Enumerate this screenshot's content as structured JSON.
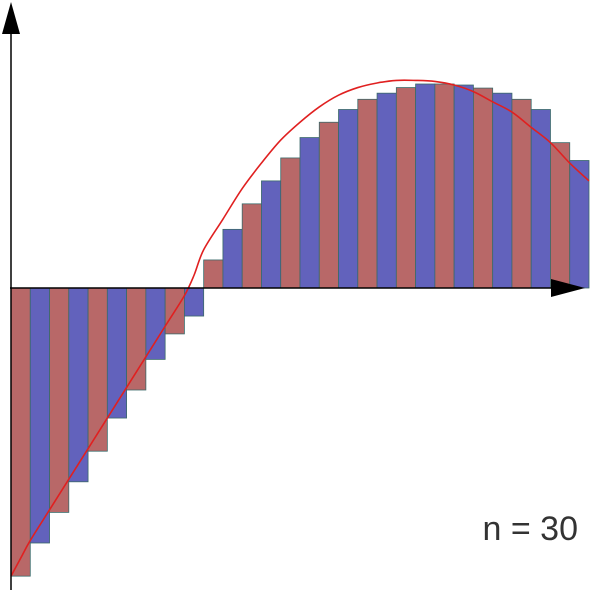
{
  "chart_data": {
    "type": "bar",
    "subtype": "riemann-sum",
    "annotation": "n = 30",
    "n": 30,
    "values": [
      -5.65,
      -5.0,
      -4.4,
      -3.8,
      -3.2,
      -2.55,
      -2.0,
      -1.4,
      -0.9,
      -0.55,
      0.55,
      1.15,
      1.65,
      2.1,
      2.55,
      2.95,
      3.25,
      3.5,
      3.7,
      3.82,
      3.93,
      4.0,
      4.0,
      3.98,
      3.92,
      3.82,
      3.7,
      3.5,
      2.85,
      2.5
    ],
    "curve": [
      [
        0,
        -5.65
      ],
      [
        0.5,
        -5.3
      ],
      [
        1,
        -4.95
      ],
      [
        2,
        -4.35
      ],
      [
        3,
        -3.75
      ],
      [
        4,
        -3.15
      ],
      [
        5,
        -2.55
      ],
      [
        6,
        -1.95
      ],
      [
        7,
        -1.35
      ],
      [
        8,
        -0.75
      ],
      [
        9,
        -0.15
      ],
      [
        9.5,
        0.25
      ],
      [
        10,
        0.75
      ],
      [
        11,
        1.35
      ],
      [
        12,
        1.95
      ],
      [
        13,
        2.45
      ],
      [
        14,
        2.9
      ],
      [
        15,
        3.25
      ],
      [
        16,
        3.55
      ],
      [
        17,
        3.78
      ],
      [
        18,
        3.93
      ],
      [
        19,
        4.02
      ],
      [
        20,
        4.07
      ],
      [
        21,
        4.07
      ],
      [
        22,
        4.05
      ],
      [
        23,
        3.98
      ],
      [
        24,
        3.85
      ],
      [
        25,
        3.65
      ],
      [
        26,
        3.45
      ],
      [
        27,
        3.15
      ],
      [
        28,
        2.85
      ],
      [
        29,
        2.45
      ],
      [
        30,
        2.1
      ]
    ],
    "xlim": [
      0,
      30
    ],
    "ylim": [
      -5.65,
      5.65
    ],
    "colors": {
      "bar_odd": "#b86868",
      "bar_even": "#6262bc",
      "bar_stroke": "#3a6a6a",
      "curve": "#e02020",
      "axis": "#000000"
    }
  }
}
